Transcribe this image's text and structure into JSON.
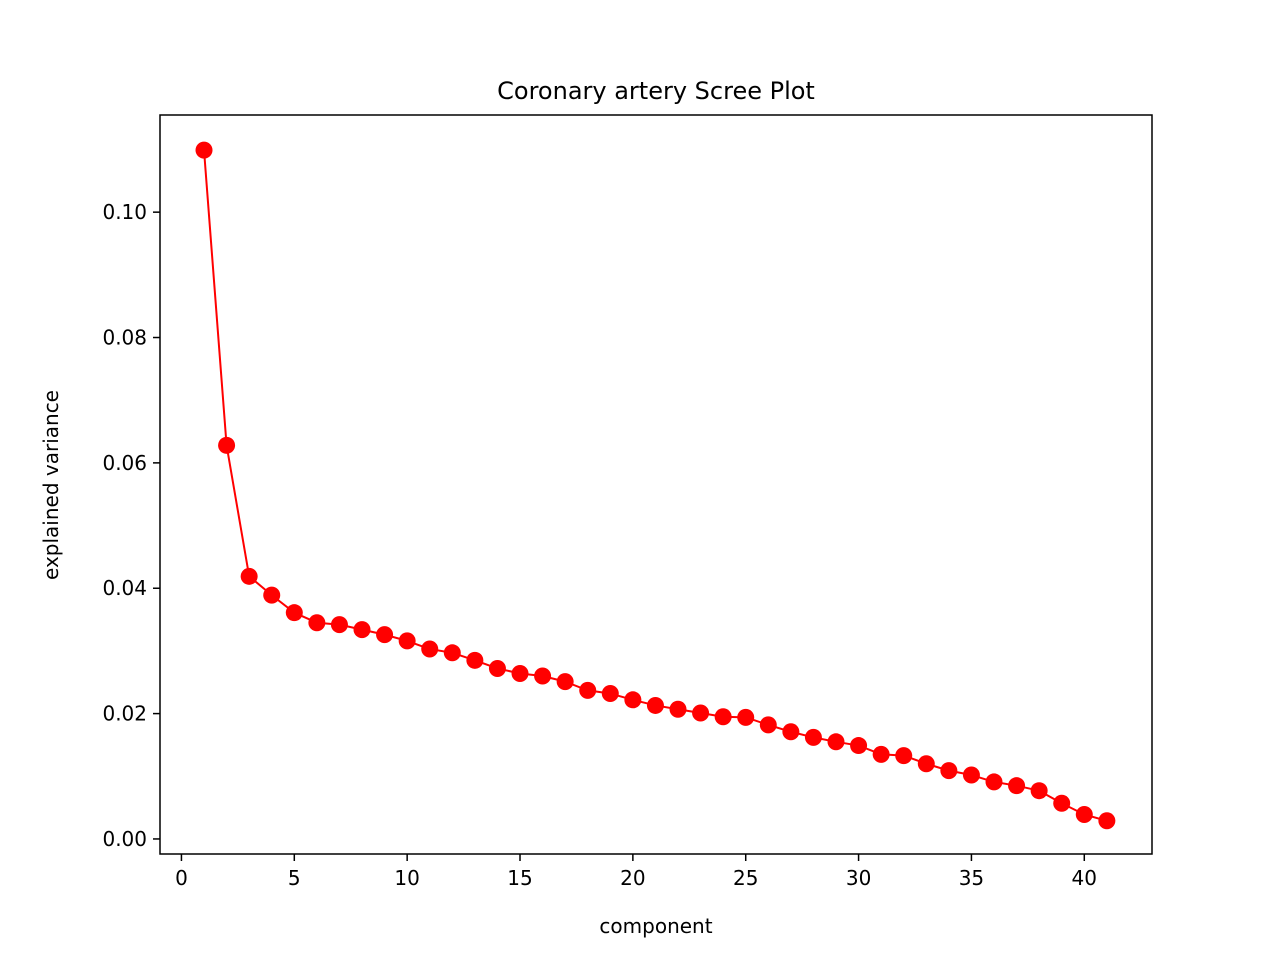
{
  "chart_data": {
    "type": "line",
    "title": "Coronary artery Scree Plot",
    "xlabel": "component",
    "ylabel": "explained variance",
    "xlim": [
      -0.95,
      43.0
    ],
    "ylim": [
      -0.0024,
      0.1155
    ],
    "xticks": [
      0,
      5,
      10,
      15,
      20,
      25,
      30,
      35,
      40
    ],
    "xtick_labels": [
      "0",
      "5",
      "10",
      "15",
      "20",
      "25",
      "30",
      "35",
      "40"
    ],
    "yticks": [
      0.0,
      0.02,
      0.04,
      0.06,
      0.08,
      0.1
    ],
    "ytick_labels": [
      "0.00",
      "0.02",
      "0.04",
      "0.06",
      "0.08",
      "0.10"
    ],
    "grid": false,
    "legend": false,
    "color": "#ff0000",
    "marker": "circle",
    "series": [
      {
        "x": [
          1,
          2,
          3,
          4,
          5,
          6,
          7,
          8,
          9,
          10,
          11,
          12,
          13,
          14,
          15,
          16,
          17,
          18,
          19,
          20,
          21,
          22,
          23,
          24,
          25,
          26,
          27,
          28,
          29,
          30,
          31,
          32,
          33,
          34,
          35,
          36,
          37,
          38,
          39,
          40,
          41
        ],
        "values": [
          0.1099,
          0.0628,
          0.0419,
          0.0389,
          0.0361,
          0.0345,
          0.0342,
          0.0334,
          0.0326,
          0.0316,
          0.0303,
          0.0297,
          0.0285,
          0.0272,
          0.0264,
          0.026,
          0.0251,
          0.0237,
          0.0232,
          0.0222,
          0.0213,
          0.0207,
          0.0201,
          0.0195,
          0.0194,
          0.0182,
          0.0171,
          0.0162,
          0.0155,
          0.0149,
          0.0135,
          0.0133,
          0.012,
          0.0109,
          0.0102,
          0.0091,
          0.0085,
          0.0077,
          0.0057,
          0.0039,
          0.0029
        ]
      }
    ]
  }
}
